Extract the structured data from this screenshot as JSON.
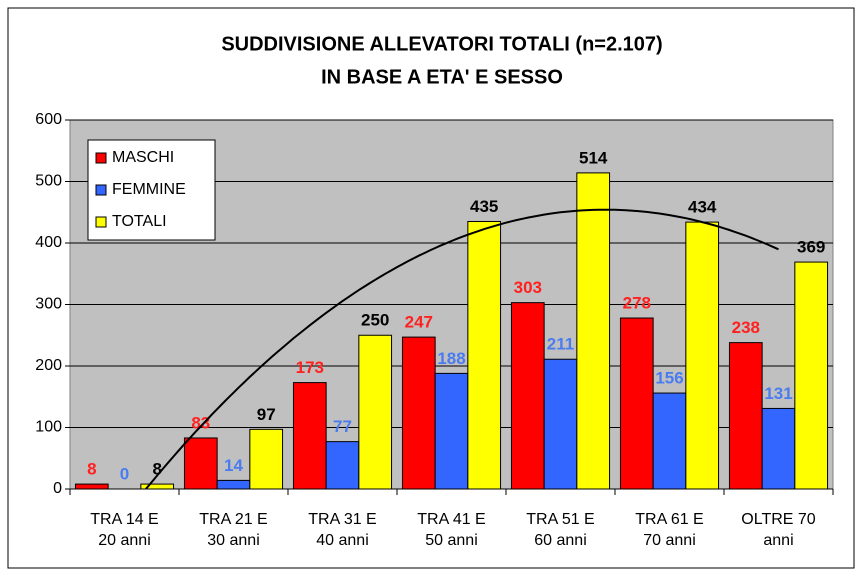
{
  "chart_data": {
    "type": "bar",
    "title": [
      "SUDDIVISIONE ALLEVATORI TOTALI (n=2.107)",
      "IN BASE A ETA' E SESSO"
    ],
    "categories": [
      "TRA 14 E 20 anni",
      "TRA 21 E 30 anni",
      "TRA 31 E 40 anni",
      "TRA 41 E 50 anni",
      "TRA 51 E 60 anni",
      "TRA 61 E 70 anni",
      "OLTRE 70 anni"
    ],
    "series": [
      {
        "name": "MASCHI",
        "color": "#ff0000",
        "label_color": "#ff2020",
        "values": [
          8,
          83,
          173,
          247,
          303,
          278,
          238
        ]
      },
      {
        "name": "FEMMINE",
        "color": "#3366ff",
        "label_color": "#4a7cf0",
        "values": [
          0,
          14,
          77,
          188,
          211,
          156,
          131
        ]
      },
      {
        "name": "TOTALI",
        "color": "#ffff00",
        "label_color": "#000000",
        "values": [
          8,
          97,
          250,
          435,
          514,
          434,
          369
        ]
      }
    ],
    "trendline": {
      "series": 2,
      "order": 2,
      "color": "#000000"
    },
    "ylim": [
      0,
      600
    ],
    "yticks": [
      0,
      100,
      200,
      300,
      400,
      500,
      600
    ],
    "grid": true,
    "plot_background": "#c0c0c0",
    "legend": "top-left"
  }
}
